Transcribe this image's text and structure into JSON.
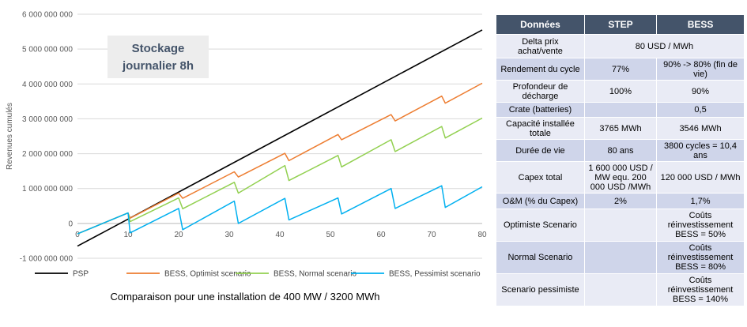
{
  "chart_data": {
    "type": "line",
    "annotation": [
      "Stockage",
      "journalier 8h"
    ],
    "ylabel": "Revenues cumulés",
    "xlabel": "",
    "xlim": [
      0,
      80
    ],
    "ylim": [
      -1000000000,
      6000000000
    ],
    "x_ticks": [
      0,
      10,
      20,
      30,
      40,
      50,
      60,
      70,
      80
    ],
    "y_ticks": [
      {
        "value": -1000000000,
        "label": "-1 000 000 000"
      },
      {
        "value": 0,
        "label": "0"
      },
      {
        "value": 1000000000,
        "label": "1 000 000 000"
      },
      {
        "value": 2000000000,
        "label": "2 000 000 000"
      },
      {
        "value": 3000000000,
        "label": "3 000 000 000"
      },
      {
        "value": 4000000000,
        "label": "4 000 000 000"
      },
      {
        "value": 5000000000,
        "label": "5 000 000 000"
      },
      {
        "value": 6000000000,
        "label": "6 000 000 000"
      }
    ],
    "grid": "horizontal",
    "legend": "bottom",
    "series": [
      {
        "name": "PSP",
        "color": "#000000",
        "points": [
          [
            0,
            -650000000
          ],
          [
            80,
            5550000000
          ]
        ]
      },
      {
        "name": "BESS, Optimist scenario",
        "color": "#ED7D31",
        "points": [
          [
            0,
            -300000000
          ],
          [
            10,
            300000000
          ],
          [
            10.4,
            150000000
          ],
          [
            20,
            870000000
          ],
          [
            20.8,
            720000000
          ],
          [
            31,
            1480000000
          ],
          [
            31.8,
            1330000000
          ],
          [
            41,
            2010000000
          ],
          [
            41.8,
            1800000000
          ],
          [
            51.5,
            2550000000
          ],
          [
            52.2,
            2400000000
          ],
          [
            62,
            3120000000
          ],
          [
            62.8,
            2940000000
          ],
          [
            72,
            3650000000
          ],
          [
            72.7,
            3450000000
          ],
          [
            80,
            4020000000
          ]
        ]
      },
      {
        "name": "BESS, Normal scenario",
        "color": "#92D050",
        "points": [
          [
            0,
            -300000000
          ],
          [
            10,
            300000000
          ],
          [
            10.4,
            50000000
          ],
          [
            20,
            730000000
          ],
          [
            20.8,
            420000000
          ],
          [
            31,
            1180000000
          ],
          [
            31.8,
            870000000
          ],
          [
            41,
            1660000000
          ],
          [
            41.8,
            1230000000
          ],
          [
            51.5,
            1950000000
          ],
          [
            52.2,
            1620000000
          ],
          [
            62,
            2400000000
          ],
          [
            62.8,
            2060000000
          ],
          [
            72,
            2780000000
          ],
          [
            72.7,
            2450000000
          ],
          [
            80,
            3020000000
          ]
        ]
      },
      {
        "name": "BESS, Pessimist scenario",
        "color": "#00B0F0",
        "points": [
          [
            0,
            -300000000
          ],
          [
            10,
            300000000
          ],
          [
            10.4,
            -270000000
          ],
          [
            20,
            430000000
          ],
          [
            20.8,
            -180000000
          ],
          [
            31,
            640000000
          ],
          [
            31.8,
            0
          ],
          [
            41,
            720000000
          ],
          [
            41.8,
            100000000
          ],
          [
            51.5,
            730000000
          ],
          [
            52.2,
            270000000
          ],
          [
            62,
            1000000000
          ],
          [
            62.8,
            430000000
          ],
          [
            72,
            1080000000
          ],
          [
            72.7,
            460000000
          ],
          [
            80,
            1050000000
          ]
        ]
      }
    ]
  },
  "caption": "Comparaison pour une installation de 400 MW / 3200 MWh",
  "table": {
    "headers": [
      "Données",
      "STEP",
      "BESS"
    ],
    "rows": [
      {
        "label": "Delta prix achat/vente",
        "merged": "80 USD / MWh"
      },
      {
        "label": "Rendement du cycle",
        "step": "77%",
        "bess": "90% -> 80% (fin de vie)"
      },
      {
        "label": "Profondeur de décharge",
        "step": "100%",
        "bess": "90%"
      },
      {
        "label": "Crate (batteries)",
        "step": "",
        "bess": "0,5"
      },
      {
        "label": "Capacité installée totale",
        "step": "3765 MWh",
        "bess": "3546 MWh"
      },
      {
        "label": "Durée de vie",
        "step": "80 ans",
        "bess": "3800 cycles = 10,4 ans"
      },
      {
        "label": "Capex total",
        "step": "1 600 000 USD / MW equ. 200 000 USD /MWh",
        "bess": "120 000 USD / MWh"
      },
      {
        "label": "O&M (% du Capex)",
        "step": "2%",
        "bess": "1,7%"
      },
      {
        "label": "Optimiste Scenario",
        "step": "",
        "bess": "Coûts réinvestissement BESS = 50%"
      },
      {
        "label": "Normal Scenario",
        "step": "",
        "bess": "Coûts réinvestissement BESS = 80%"
      },
      {
        "label": "Scenario pessimiste",
        "step": "",
        "bess": "Coûts réinvestissement BESS = 140%"
      }
    ]
  }
}
